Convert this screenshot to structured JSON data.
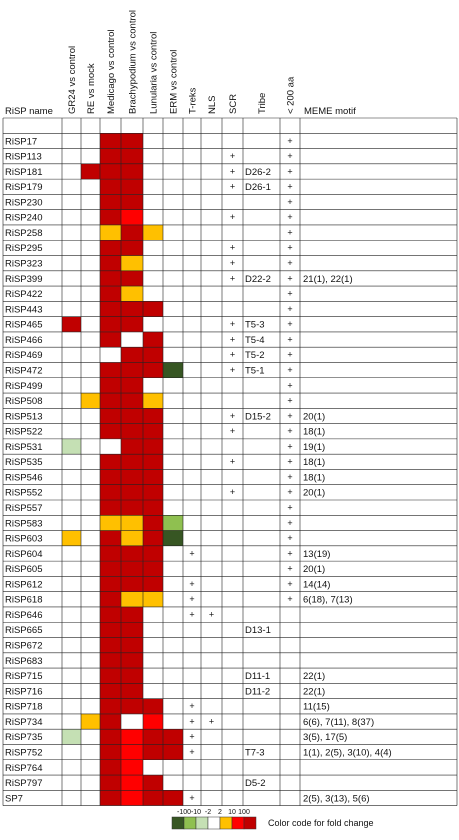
{
  "chart_data": {
    "type": "heatmap",
    "title": "",
    "columns": [
      {
        "key": "gr24",
        "label": "GR24 vs control"
      },
      {
        "key": "re",
        "label": "RE vs mock"
      },
      {
        "key": "med",
        "label": "Medicago vs control"
      },
      {
        "key": "bra",
        "label": "Brachypodium vs control"
      },
      {
        "key": "lun",
        "label": "Lunularia vs control"
      },
      {
        "key": "erm",
        "label": "ERM vs control"
      },
      {
        "key": "treks",
        "label": "T-reks"
      },
      {
        "key": "nls",
        "label": "NLS"
      },
      {
        "key": "scr",
        "label": "SCR"
      },
      {
        "key": "tribe",
        "label": "Tribe"
      },
      {
        "key": "lt200",
        "label": "< 200 aa"
      },
      {
        "key": "meme",
        "label": "MEME motif"
      }
    ],
    "row_header": "RiSP name",
    "color_scale": {
      "name": "Color code for fold change",
      "ticks": [
        "-100",
        "-10",
        "-2",
        "2",
        "10",
        "100"
      ],
      "colors": {
        "dn100": "#375623",
        "dn10": "#8fc050",
        "dn2": "#c5e0b4",
        "none": "#ffffff",
        "up2": "#ffc000",
        "up10": "#ff0000",
        "up100": "#c00000"
      }
    },
    "rows": [
      {
        "name": "RiSP17",
        "fold": [
          "",
          "",
          "up100",
          "up100",
          "",
          "",
          "",
          "",
          "",
          "",
          "",
          ""
        ],
        "flags": [
          "",
          "",
          "",
          "",
          "+",
          ""
        ]
      },
      {
        "name": "RiSP113",
        "fold": [
          "",
          "",
          "up100",
          "up100",
          "",
          "",
          "",
          "",
          "+",
          "",
          "+",
          ""
        ],
        "flags": [
          "",
          "",
          "+",
          "",
          "+",
          ""
        ]
      },
      {
        "name": "RiSP181",
        "fold": [
          "",
          "up100",
          "up100",
          "up100",
          "",
          "",
          "",
          "",
          "",
          "",
          "",
          ""
        ],
        "flags": [
          "",
          "",
          "+",
          "D26-2",
          "+",
          ""
        ]
      },
      {
        "name": "RiSP179",
        "fold": [
          "",
          "",
          "up100",
          "up100",
          "",
          "",
          "",
          "",
          "",
          "",
          "",
          ""
        ],
        "flags": [
          "",
          "",
          "+",
          "D26-1",
          "+",
          ""
        ]
      },
      {
        "name": "RiSP230",
        "fold": [
          "",
          "",
          "up100",
          "up100",
          "",
          "",
          "",
          "",
          "",
          "",
          "",
          ""
        ],
        "flags": [
          "",
          "",
          "",
          "",
          "+",
          ""
        ]
      },
      {
        "name": "RiSP240",
        "fold": [
          "",
          "",
          "up100",
          "up10",
          "",
          "",
          "",
          "",
          "",
          "",
          "",
          ""
        ],
        "flags": [
          "",
          "",
          "+",
          "",
          "+",
          ""
        ]
      },
      {
        "name": "RiSP258",
        "fold": [
          "",
          "",
          "up2",
          "up100",
          "up2",
          "",
          "",
          "",
          "",
          "",
          "",
          ""
        ],
        "flags": [
          "",
          "",
          "",
          "",
          "+",
          ""
        ]
      },
      {
        "name": "RiSP295",
        "fold": [
          "",
          "",
          "up100",
          "up100",
          "",
          "",
          "",
          "",
          "",
          "",
          "",
          ""
        ],
        "flags": [
          "",
          "",
          "+",
          "",
          "+",
          ""
        ]
      },
      {
        "name": "RiSP323",
        "fold": [
          "",
          "",
          "up100",
          "up2",
          "",
          "",
          "",
          "",
          "",
          "",
          "",
          ""
        ],
        "flags": [
          "",
          "",
          "+",
          "",
          "+",
          ""
        ]
      },
      {
        "name": "RiSP399",
        "fold": [
          "",
          "",
          "up100",
          "up100",
          "",
          "",
          "",
          "",
          "",
          "",
          "",
          ""
        ],
        "flags": [
          "",
          "",
          "+",
          "D22-2",
          "+",
          "21(1), 22(1)"
        ]
      },
      {
        "name": "RiSP422",
        "fold": [
          "",
          "",
          "up100",
          "up2",
          "",
          "",
          "",
          "",
          "",
          "",
          "",
          ""
        ],
        "flags": [
          "",
          "",
          "",
          "",
          "+",
          ""
        ]
      },
      {
        "name": "RiSP443",
        "fold": [
          "",
          "",
          "up100",
          "up100",
          "up100",
          "",
          "",
          "",
          "",
          "",
          "",
          ""
        ],
        "flags": [
          "",
          "",
          "",
          "",
          "+",
          ""
        ]
      },
      {
        "name": "RiSP465",
        "fold": [
          "up100",
          "",
          "up100",
          "up100",
          "",
          "",
          "",
          "",
          "",
          "",
          "",
          ""
        ],
        "flags": [
          "",
          "",
          "+",
          "T5-3",
          "+",
          ""
        ]
      },
      {
        "name": "RiSP466",
        "fold": [
          "",
          "",
          "up100",
          "",
          "up100",
          "",
          "",
          "",
          "",
          "",
          "",
          ""
        ],
        "flags": [
          "",
          "",
          "+",
          "T5-4",
          "+",
          ""
        ]
      },
      {
        "name": "RiSP469",
        "fold": [
          "",
          "",
          "",
          "up100",
          "up100",
          "",
          "",
          "",
          "",
          "",
          "",
          ""
        ],
        "flags": [
          "",
          "",
          "+",
          "T5-2",
          "+",
          ""
        ]
      },
      {
        "name": "RiSP472",
        "fold": [
          "",
          "",
          "up100",
          "up100",
          "up100",
          "dn100",
          "",
          "",
          "",
          "",
          "",
          ""
        ],
        "flags": [
          "",
          "",
          "+",
          "T5-1",
          "+",
          ""
        ]
      },
      {
        "name": "RiSP499",
        "fold": [
          "",
          "",
          "up100",
          "up100",
          "",
          "",
          "",
          "",
          "",
          "",
          "",
          ""
        ],
        "flags": [
          "",
          "",
          "",
          "",
          "+",
          ""
        ]
      },
      {
        "name": "RiSP508",
        "fold": [
          "",
          "up2",
          "up100",
          "up100",
          "up2",
          "",
          "",
          "",
          "",
          "",
          "",
          ""
        ],
        "flags": [
          "",
          "",
          "",
          "",
          "+",
          ""
        ]
      },
      {
        "name": "RiSP513",
        "fold": [
          "",
          "",
          "up100",
          "up100",
          "up100",
          "",
          "",
          "",
          "",
          "",
          "",
          ""
        ],
        "flags": [
          "",
          "",
          "+",
          "D15-2",
          "+",
          "20(1)"
        ]
      },
      {
        "name": "RiSP522",
        "fold": [
          "",
          "",
          "up100",
          "up100",
          "up100",
          "",
          "",
          "",
          "",
          "",
          "",
          ""
        ],
        "flags": [
          "",
          "",
          "+",
          "",
          "+",
          "18(1)"
        ]
      },
      {
        "name": "RiSP531",
        "fold": [
          "dn2",
          "",
          "",
          "up100",
          "up100",
          "",
          "",
          "",
          "",
          "",
          "",
          ""
        ],
        "flags": [
          "",
          "",
          "",
          "",
          "+",
          "19(1)"
        ]
      },
      {
        "name": "RiSP535",
        "fold": [
          "",
          "",
          "up100",
          "up100",
          "up100",
          "",
          "",
          "",
          "",
          "",
          "",
          ""
        ],
        "flags": [
          "",
          "",
          "+",
          "",
          "+",
          "18(1)"
        ]
      },
      {
        "name": "RiSP546",
        "fold": [
          "",
          "",
          "up100",
          "up100",
          "up100",
          "",
          "",
          "",
          "",
          "",
          "",
          ""
        ],
        "flags": [
          "",
          "",
          "",
          "",
          "+",
          "18(1)"
        ]
      },
      {
        "name": "RiSP552",
        "fold": [
          "",
          "",
          "up100",
          "up100",
          "up100",
          "",
          "",
          "",
          "",
          "",
          "",
          ""
        ],
        "flags": [
          "",
          "",
          "+",
          "",
          "+",
          "20(1)"
        ]
      },
      {
        "name": "RiSP557",
        "fold": [
          "",
          "",
          "up100",
          "up100",
          "up100",
          "",
          "",
          "",
          "",
          "",
          "",
          ""
        ],
        "flags": [
          "",
          "",
          "",
          "",
          "+",
          ""
        ]
      },
      {
        "name": "RiSP583",
        "fold": [
          "",
          "",
          "up2",
          "up2",
          "up100",
          "dn10",
          "",
          "",
          "",
          "",
          "",
          ""
        ],
        "flags": [
          "",
          "",
          "",
          "",
          "+",
          ""
        ]
      },
      {
        "name": "RiSP603",
        "fold": [
          "up2",
          "",
          "up100",
          "up2",
          "up100",
          "dn100",
          "",
          "",
          "",
          "",
          "",
          ""
        ],
        "flags": [
          "",
          "",
          "",
          "",
          "+",
          ""
        ]
      },
      {
        "name": "RiSP604",
        "fold": [
          "",
          "",
          "up100",
          "up100",
          "up100",
          "",
          "",
          "",
          "",
          "",
          "",
          ""
        ],
        "flags": [
          "+",
          "",
          "",
          "",
          "+",
          "13(19)"
        ]
      },
      {
        "name": "RiSP605",
        "fold": [
          "",
          "",
          "up100",
          "up100",
          "up100",
          "",
          "",
          "",
          "",
          "",
          "",
          ""
        ],
        "flags": [
          "",
          "",
          "",
          "",
          "+",
          "20(1)"
        ]
      },
      {
        "name": "RiSP612",
        "fold": [
          "",
          "",
          "up100",
          "up100",
          "up100",
          "",
          "",
          "",
          "",
          "",
          "",
          ""
        ],
        "flags": [
          "+",
          "",
          "",
          "",
          "+",
          "14(14)"
        ]
      },
      {
        "name": "RiSP618",
        "fold": [
          "",
          "",
          "up100",
          "up2",
          "up2",
          "",
          "",
          "",
          "",
          "",
          "",
          ""
        ],
        "flags": [
          "+",
          "",
          "",
          "",
          "+",
          "6(18), 7(13)"
        ]
      },
      {
        "name": "RiSP646",
        "fold": [
          "",
          "",
          "up100",
          "up100",
          "",
          "",
          "",
          "",
          "",
          "",
          "",
          ""
        ],
        "flags": [
          "+",
          "+",
          "",
          "",
          "",
          ""
        ]
      },
      {
        "name": "RiSP665",
        "fold": [
          "",
          "",
          "up100",
          "up100",
          "",
          "",
          "",
          "",
          "",
          "",
          "",
          ""
        ],
        "flags": [
          "",
          "",
          "",
          "D13-1",
          "",
          ""
        ]
      },
      {
        "name": "RiSP672",
        "fold": [
          "",
          "",
          "up100",
          "up100",
          "",
          "",
          "",
          "",
          "",
          "",
          "",
          ""
        ],
        "flags": [
          "",
          "",
          "",
          "",
          "",
          ""
        ]
      },
      {
        "name": "RiSP683",
        "fold": [
          "",
          "",
          "up100",
          "up100",
          "",
          "",
          "",
          "",
          "",
          "",
          "",
          ""
        ],
        "flags": [
          "",
          "",
          "",
          "",
          "",
          ""
        ]
      },
      {
        "name": "RiSP715",
        "fold": [
          "",
          "",
          "up100",
          "up100",
          "",
          "",
          "",
          "",
          "",
          "",
          "",
          ""
        ],
        "flags": [
          "",
          "",
          "",
          "D11-1",
          "",
          "22(1)"
        ]
      },
      {
        "name": "RiSP716",
        "fold": [
          "",
          "",
          "up100",
          "up100",
          "",
          "",
          "",
          "",
          "",
          "",
          "",
          ""
        ],
        "flags": [
          "",
          "",
          "",
          "D11-2",
          "",
          "22(1)"
        ]
      },
      {
        "name": "RiSP718",
        "fold": [
          "",
          "",
          "up100",
          "up100",
          "up100",
          "",
          "",
          "",
          "",
          "",
          "",
          ""
        ],
        "flags": [
          "+",
          "",
          "",
          "",
          "",
          "11(15)"
        ]
      },
      {
        "name": "RiSP734",
        "fold": [
          "",
          "up2",
          "up100",
          "",
          "up10",
          "",
          "",
          "",
          "",
          "",
          "",
          ""
        ],
        "flags": [
          "+",
          "+",
          "",
          "",
          "",
          "6(6), 7(11), 8(37)"
        ]
      },
      {
        "name": "RiSP735",
        "fold": [
          "dn2",
          "",
          "up100",
          "up10",
          "up100",
          "up100",
          "",
          "",
          "",
          "",
          "",
          ""
        ],
        "flags": [
          "+",
          "",
          "",
          "",
          "",
          "3(5), 17(5)"
        ]
      },
      {
        "name": "RiSP752",
        "fold": [
          "",
          "",
          "up100",
          "up10",
          "up100",
          "up100",
          "",
          "",
          "",
          "",
          "",
          ""
        ],
        "flags": [
          "+",
          "",
          "",
          "T7-3",
          "",
          "1(1), 2(5), 3(10), 4(4)"
        ]
      },
      {
        "name": "RiSP764",
        "fold": [
          "",
          "",
          "up100",
          "up10",
          "",
          "",
          "",
          "",
          "",
          "",
          "",
          ""
        ],
        "flags": [
          "",
          "",
          "",
          "",
          "",
          ""
        ]
      },
      {
        "name": "RiSP797",
        "fold": [
          "",
          "",
          "up100",
          "up10",
          "up100",
          "",
          "",
          "",
          "",
          "",
          "",
          ""
        ],
        "flags": [
          "",
          "",
          "",
          "D5-2",
          "",
          ""
        ]
      },
      {
        "name": "SP7",
        "fold": [
          "",
          "",
          "up100",
          "up10",
          "up100",
          "up100",
          "",
          "",
          "",
          "",
          "",
          ""
        ],
        "flags": [
          "+",
          "",
          "",
          "",
          "",
          "2(5), 3(13), 5(6)"
        ]
      }
    ]
  }
}
